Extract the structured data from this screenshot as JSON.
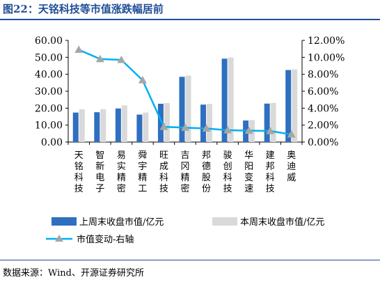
{
  "header": {
    "title": "图22：天铭科技等市值涨跌幅居前",
    "source": "数据来源：Wind、开源证券研究所"
  },
  "chart_data": {
    "type": "bar",
    "categories": [
      "天铭科技",
      "智新电子",
      "易实精密",
      "舜宇精工",
      "旺成科技",
      "吉冈精密",
      "邦德股份",
      "骏创科技",
      "华阳变速",
      "建邦科技",
      "奥迪威"
    ],
    "series": [
      {
        "name": "上周末收盘市值/亿元",
        "type": "bar",
        "axis": "left",
        "color": "#2e6fc0",
        "values": [
          17.4,
          17.6,
          19.8,
          16.2,
          22.6,
          38.5,
          22.1,
          49.2,
          12.7,
          22.7,
          42.5
        ]
      },
      {
        "name": "本周末收盘市值/亿元",
        "type": "bar",
        "axis": "left",
        "color": "#d9d9d9",
        "values": [
          19.3,
          19.4,
          21.6,
          17.4,
          23.0,
          39.2,
          22.5,
          49.9,
          13.0,
          23.1,
          42.9
        ]
      },
      {
        "name": "市值变动-右轴",
        "type": "line",
        "axis": "right",
        "color": "#00b0f0",
        "marker": "triangle",
        "marker_color": "#a6a6a6",
        "values": [
          10.9,
          9.8,
          9.7,
          7.3,
          1.8,
          1.7,
          1.6,
          1.4,
          1.35,
          1.3,
          0.9
        ]
      }
    ],
    "y_left": {
      "ylim": [
        0,
        60
      ],
      "ticks": [
        "0.00",
        "10.00",
        "20.00",
        "30.00",
        "40.00",
        "50.00",
        "60.00"
      ]
    },
    "y_right": {
      "ylim": [
        0,
        12
      ],
      "ticks": [
        "0.00%",
        "2.00%",
        "4.00%",
        "6.00%",
        "8.00%",
        "10.00%",
        "12.00%"
      ]
    },
    "grid": false,
    "legend_placement": "bottom"
  }
}
